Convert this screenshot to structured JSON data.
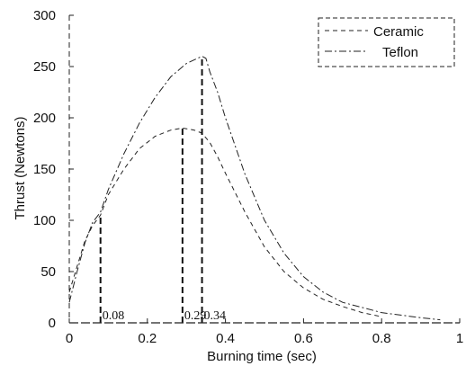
{
  "chart_data": {
    "type": "line",
    "xlabel": "Burning time (sec)",
    "ylabel": "Thrust (Newtons)",
    "xlim": [
      0,
      1
    ],
    "ylim": [
      0,
      300
    ],
    "xticks": [
      0,
      0.2,
      0.4,
      0.6,
      0.8,
      1
    ],
    "xtick_labels": [
      "0",
      "0.2",
      "0.4",
      "0.6",
      "0.8",
      "1"
    ],
    "yticks": [
      0,
      50,
      100,
      150,
      200,
      250,
      300
    ],
    "ytick_labels": [
      "0",
      "50",
      "100",
      "150",
      "200",
      "250",
      "300"
    ],
    "grid": false,
    "legend_position": "top-right",
    "series": [
      {
        "name": "Ceramic",
        "style": "dashed",
        "x": [
          0,
          0.02,
          0.04,
          0.06,
          0.08,
          0.1,
          0.14,
          0.18,
          0.22,
          0.26,
          0.29,
          0.32,
          0.34,
          0.36,
          0.38,
          0.4,
          0.45,
          0.5,
          0.55,
          0.6,
          0.65,
          0.7,
          0.75,
          0.8
        ],
        "y": [
          30,
          55,
          80,
          95,
          105,
          125,
          150,
          170,
          182,
          188,
          190,
          188,
          185,
          176,
          162,
          146,
          108,
          74,
          50,
          34,
          23,
          16,
          10,
          6
        ]
      },
      {
        "name": "Teflon",
        "style": "dash-dot",
        "x": [
          0,
          0.02,
          0.04,
          0.06,
          0.08,
          0.1,
          0.14,
          0.18,
          0.22,
          0.26,
          0.3,
          0.34,
          0.35,
          0.36,
          0.38,
          0.4,
          0.45,
          0.5,
          0.55,
          0.6,
          0.65,
          0.7,
          0.8,
          0.9,
          0.95
        ],
        "y": [
          20,
          50,
          78,
          98,
          108,
          130,
          165,
          195,
          220,
          240,
          253,
          260,
          258,
          245,
          225,
          200,
          145,
          100,
          68,
          45,
          30,
          20,
          10,
          5,
          3
        ]
      }
    ],
    "markers": [
      {
        "x": 0.08,
        "label": "0.08",
        "y": 103
      },
      {
        "x": 0.29,
        "label": "0.29",
        "y": 190
      },
      {
        "x": 0.34,
        "label": "0.34",
        "y": 260
      }
    ]
  }
}
